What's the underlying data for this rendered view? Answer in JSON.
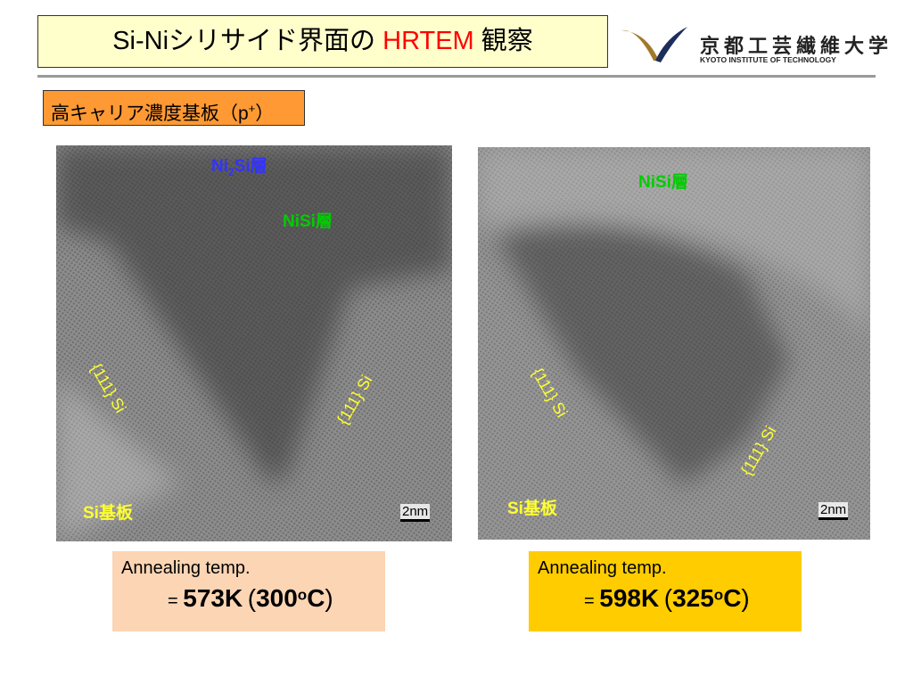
{
  "header": {
    "title": {
      "prefix": "Si-Niシリサイド界面の",
      "highlight": "HRTEM",
      "suffix": "観察"
    },
    "logo": {
      "name": "京都工芸繊維大学",
      "english": "KYOTO INSTITUTE OF TECHNOLOGY"
    }
  },
  "subtitle": {
    "text": "高キャリア濃度基板（p",
    "sup": "+",
    "close": "）"
  },
  "panels": [
    {
      "layers": [
        {
          "main": "Ni",
          "sub": "2",
          "rest": "Si層"
        },
        {
          "main": "NiSi層"
        }
      ],
      "facets": [
        "{111} Si",
        "{111} Si"
      ],
      "substrate": "Si基板",
      "scale": "2nm",
      "annealing": {
        "label": "Annealing temp.",
        "eq": "=",
        "kelvin": "573K",
        "open": "(",
        "celsius": "300",
        "deg": "o",
        "unit": "C",
        "close": ")"
      }
    },
    {
      "layers": [
        {
          "main": "NiSi層"
        }
      ],
      "facets": [
        "{111} Si",
        "{111} Si"
      ],
      "substrate": "Si基板",
      "scale": "2nm",
      "annealing": {
        "label": "Annealing temp.",
        "eq": "=",
        "kelvin": "598K",
        "open": "(",
        "celsius": "325",
        "deg": "o",
        "unit": "C",
        "close": ")"
      }
    }
  ]
}
